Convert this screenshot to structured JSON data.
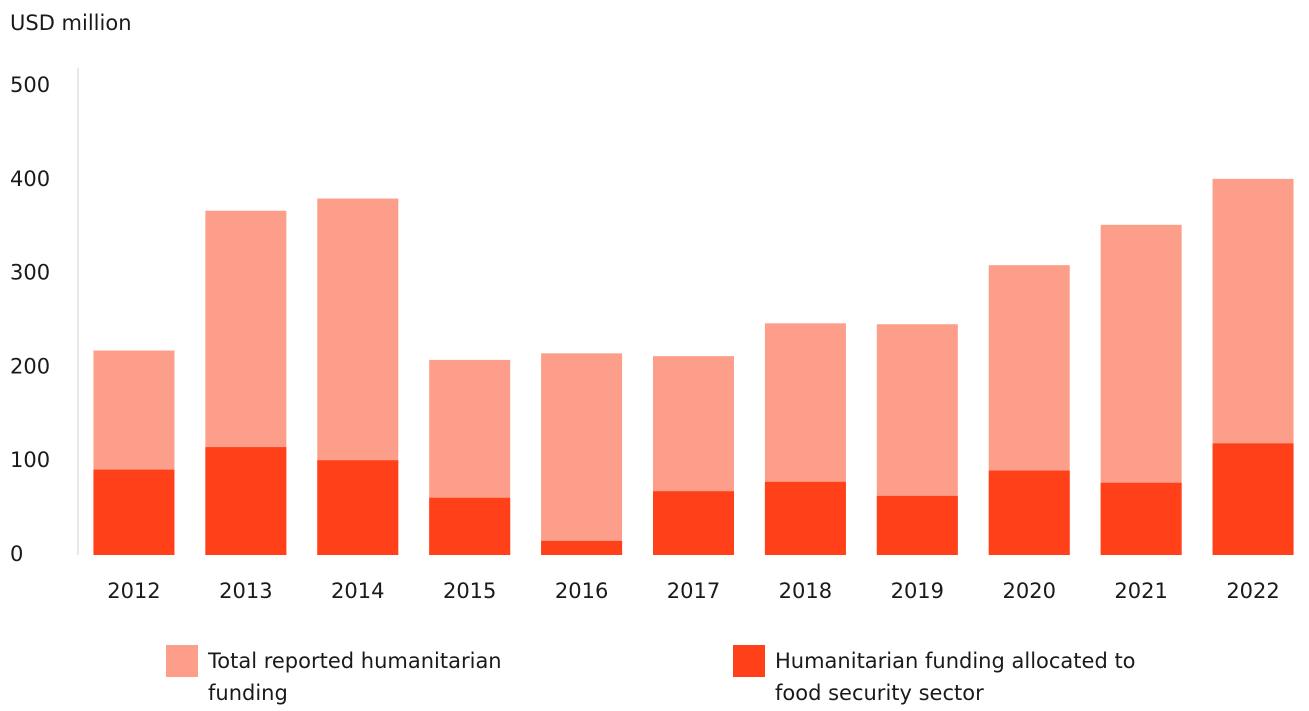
{
  "chart_data": {
    "type": "bar",
    "y_label": "USD million",
    "categories": [
      "2012",
      "2013",
      "2014",
      "2015",
      "2016",
      "2017",
      "2018",
      "2019",
      "2020",
      "2021",
      "2022"
    ],
    "series": [
      {
        "name": "Total reported humanitarian funding",
        "color": "#fc9e89",
        "values": [
          218,
          367,
          380,
          208,
          215,
          212,
          247,
          246,
          309,
          352,
          401
        ]
      },
      {
        "name": "Humanitarian funding allocated to food security sector",
        "color": "#ff4019",
        "values": [
          91,
          115,
          101,
          61,
          15,
          68,
          78,
          63,
          90,
          77,
          119
        ]
      }
    ],
    "ylim": [
      0,
      500
    ],
    "yticks": [
      0,
      100,
      200,
      300,
      400,
      500
    ],
    "grid": false
  }
}
